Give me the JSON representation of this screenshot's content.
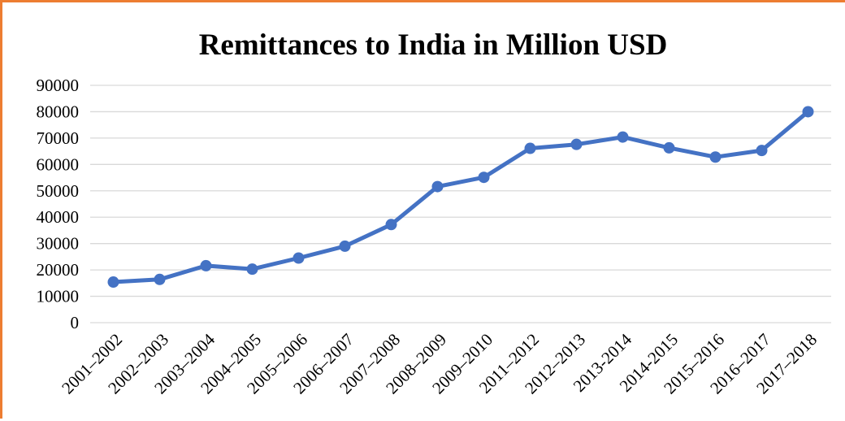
{
  "colors": {
    "frame_border": "#ED7D31",
    "series_line": "#4472C4",
    "grid": "#D9D9D9"
  },
  "chart_data": {
    "type": "line",
    "title": "Remittances to India in Million USD",
    "xlabel": "",
    "ylabel": "",
    "ylim": [
      0,
      90000
    ],
    "yticks": [
      0,
      10000,
      20000,
      30000,
      40000,
      50000,
      60000,
      70000,
      80000,
      90000
    ],
    "ytick_labels": [
      "0",
      "10000",
      "20000",
      "30000",
      "40000",
      "50000",
      "60000",
      "70000",
      "80000",
      "90000"
    ],
    "grid": true,
    "legend": "none",
    "categories": [
      "2001–2002",
      "2002–2003",
      "2003–2004",
      "2004–2005",
      "2005–2006",
      "2006–2007",
      "2007–2008",
      "2008–2009",
      "2009–2010",
      "2011–2012",
      "2012–2013",
      "2013-2014",
      "2014-2015",
      "2015–2016",
      "2016–2017",
      "2017–2018"
    ],
    "series": [
      {
        "values": [
          15400,
          16400,
          21600,
          20300,
          24500,
          29000,
          37200,
          51600,
          55100,
          66100,
          67600,
          70400,
          66300,
          62800,
          65300,
          80000
        ]
      }
    ]
  }
}
